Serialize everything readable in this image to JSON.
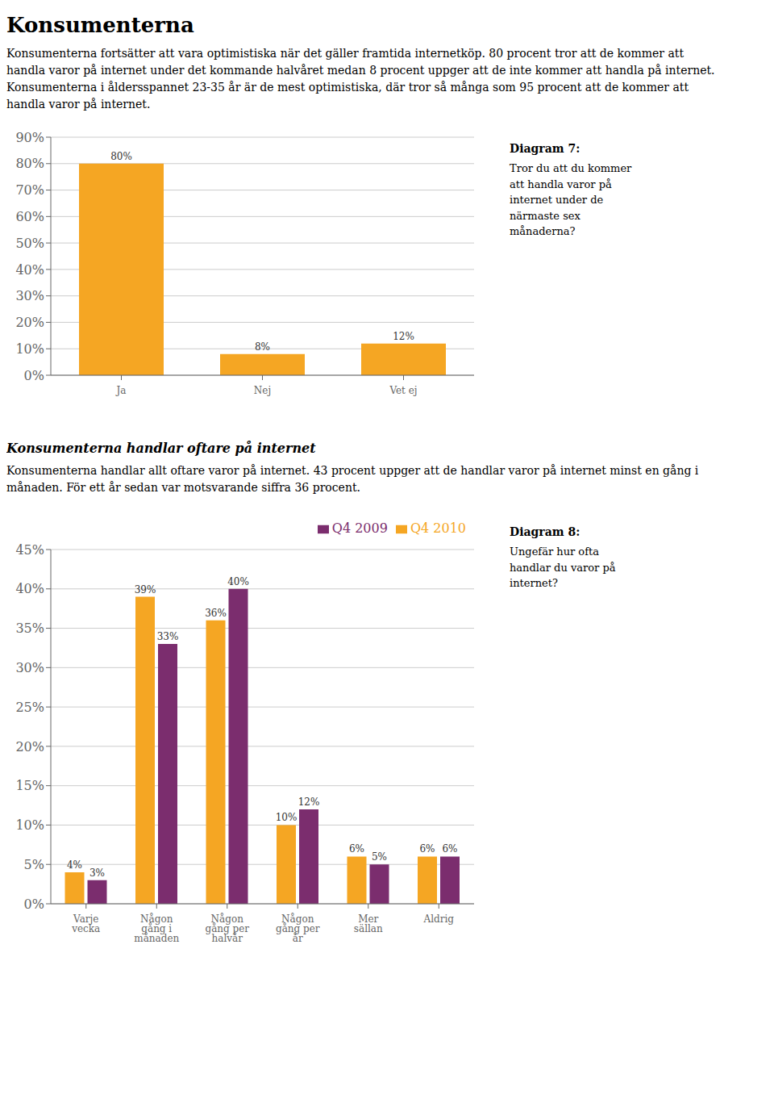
{
  "chart_data": [
    {
      "type": "bar",
      "title": "Konsumenterna",
      "subtitle": "Konsumenterna fortsätter att vara optimistiska när det gäller framtida internetköp. 80 procent tror att de kommer att handla varor på internet under det kommande halvåret medan 8 procent uppger att de inte kommer att handla på internet. Konsumenterna i åldersspannet 23-35 år är de mest optimistiska, där tror så många som 95 procent att de kommer att handla varor på internet.",
      "annotations": [
        "Diagram 7:",
        "Tror du att du kommer\natt handla varor på\ninternet under de\nnärmaste sex\nmånaderna?"
      ],
      "categories": [
        "Ja",
        "Nej",
        "Vet ej"
      ],
      "values": [
        80,
        8,
        12
      ],
      "value_labels": [
        "80%",
        "8%",
        "12%"
      ],
      "color": "#F5A623",
      "ylim": [
        0,
        90
      ],
      "yticks": [
        {
          "value": 0,
          "label": "0%"
        },
        {
          "value": 10,
          "label": "10%"
        },
        {
          "value": 20,
          "label": "20%"
        },
        {
          "value": 30,
          "label": "30%"
        },
        {
          "value": 40,
          "label": "40%"
        },
        {
          "value": 50,
          "label": "50%"
        },
        {
          "value": 60,
          "label": "60%"
        },
        {
          "value": 70,
          "label": "70%"
        },
        {
          "value": 80,
          "label": "80%"
        },
        {
          "value": 90,
          "label": "90%"
        }
      ],
      "grid": true,
      "data_labels": true
    },
    {
      "type": "bar",
      "title": "Konsumenterna handlar oftare på internet",
      "subtitle": "Konsumenterna handlar allt oftare varor på internet. 43 procent uppger att de handlar varor på internet minst en gång i månaden. För ett år sedan var motsvarande siffra 36 procent.",
      "annotations": [
        "Diagram 8:",
        "Ungefär hur ofta\nhandlar du varor på\ninternet?"
      ],
      "categories": [
        "Varje vecka",
        "Någon gång i\nmånaden",
        "Någon gång per halvår",
        "Någon gång per år",
        "Mer sällan",
        "Aldrig"
      ],
      "series": [
        {
          "name": "Q4 2010",
          "color": "#F5A623",
          "values": [
            4,
            39,
            36,
            10,
            6,
            6
          ],
          "value_labels": [
            "4%",
            "39%",
            "36%",
            "10%",
            "6%",
            "6%"
          ]
        },
        {
          "name": "Q4 2009",
          "color": "#7B2D6E",
          "values": [
            3,
            33,
            40,
            12,
            5,
            6
          ],
          "value_labels": [
            "3%",
            "33%",
            "40%",
            "12%",
            "5%",
            "6%"
          ]
        }
      ],
      "ylim": [
        0,
        45
      ],
      "yticks": [
        {
          "value": 0,
          "label": "0%"
        },
        {
          "value": 5,
          "label": "5%"
        },
        {
          "value": 10,
          "label": "10%"
        },
        {
          "value": 15,
          "label": "15%"
        },
        {
          "value": 20,
          "label": "20%"
        },
        {
          "value": 25,
          "label": "25%"
        },
        {
          "value": 30,
          "label": "30%"
        },
        {
          "value": 35,
          "label": "35%"
        },
        {
          "value": 40,
          "label": "40%"
        },
        {
          "value": 45,
          "label": "45%"
        }
      ],
      "grid": true,
      "legend": "upper right",
      "data_labels": true
    }
  ]
}
